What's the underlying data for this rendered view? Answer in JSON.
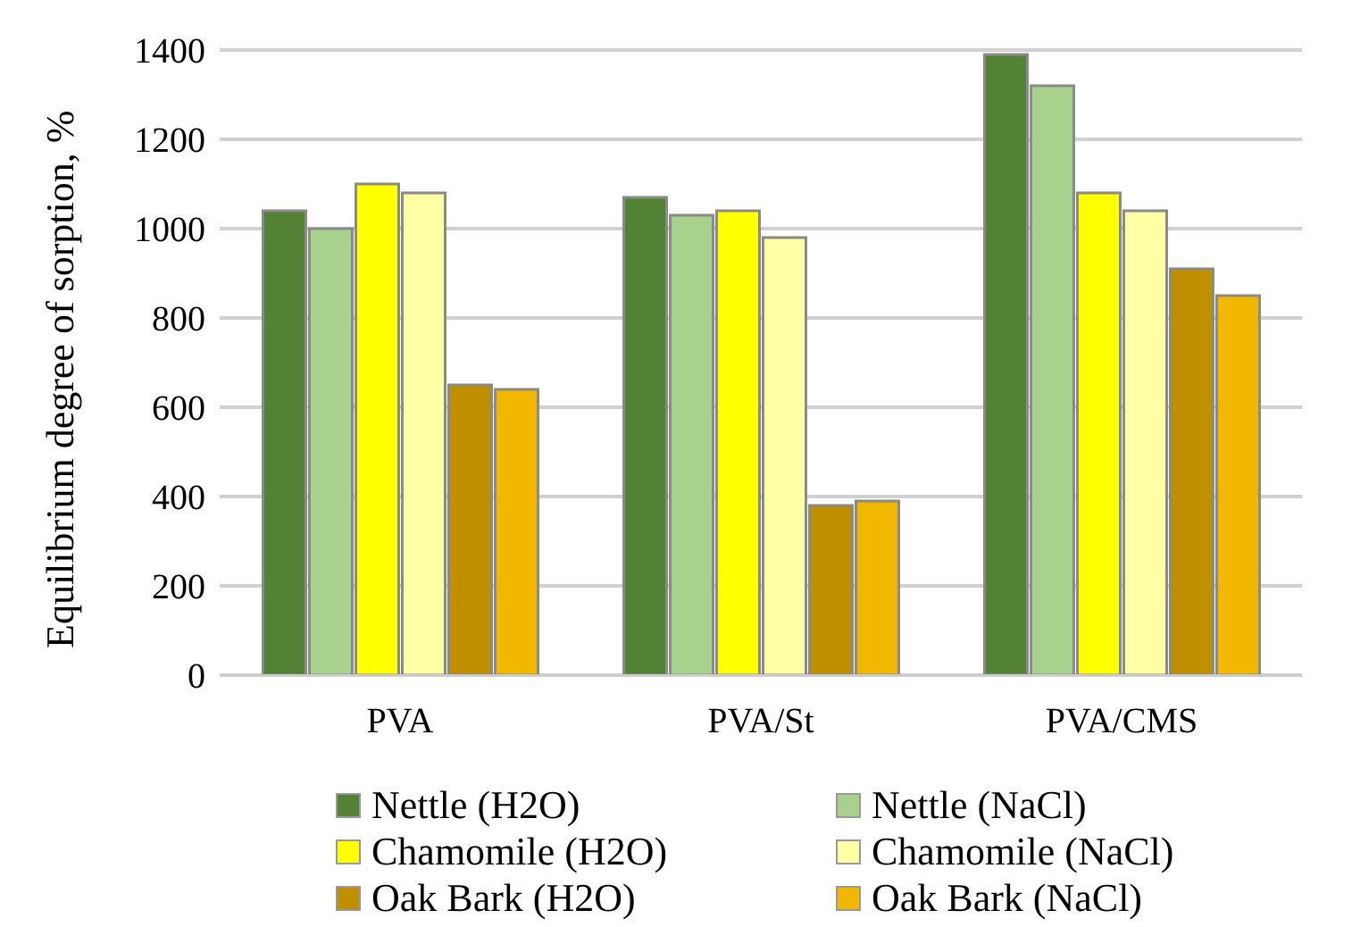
{
  "chart_data": {
    "type": "bar",
    "ylabel": "Equilibrium degree of sorption, %",
    "categories": [
      "PVA",
      "PVA/St",
      "PVA/CMS"
    ],
    "series": [
      {
        "name": "Nettle (H2O)",
        "color": "#548235",
        "values": [
          1040,
          1070,
          1390
        ]
      },
      {
        "name": "Nettle (NaCl)",
        "color": "#a9d18e",
        "values": [
          1000,
          1030,
          1320
        ]
      },
      {
        "name": "Chamomile (H2O)",
        "color": "#ffff00",
        "values": [
          1100,
          1040,
          1080
        ]
      },
      {
        "name": "Chamomile (NaCl)",
        "color": "#ffffa6",
        "values": [
          1080,
          980,
          1040
        ]
      },
      {
        "name": "Oak Bark (H2O)",
        "color": "#bf8f00",
        "values": [
          650,
          380,
          910
        ]
      },
      {
        "name": "Oak Bark (NaCl)",
        "color": "#f2b800",
        "values": [
          640,
          390,
          850
        ]
      }
    ],
    "ylim": [
      0,
      1400
    ],
    "yticks": [
      0,
      200,
      400,
      600,
      800,
      1000,
      1200,
      1400
    ],
    "grid": "y",
    "legend": "bottom"
  }
}
